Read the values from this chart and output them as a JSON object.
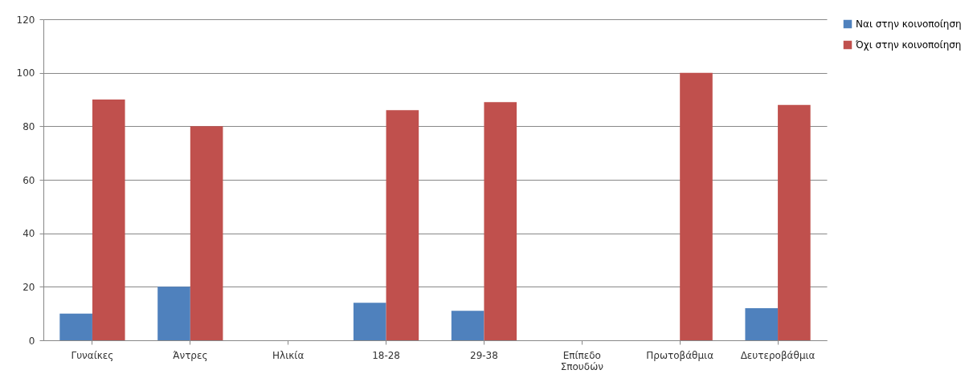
{
  "chart_data": {
    "type": "bar",
    "categories": [
      "Γυναίκες",
      "Άντρες",
      "Ηλικία",
      "18-28",
      "29-38",
      "Επίπεδο Σπουδών",
      "Πρωτοβάθμια",
      "Δευτεροβάθμια"
    ],
    "series": [
      {
        "name": "Ναι στην κοινοποίηση",
        "color": "#4f81bd",
        "values": [
          10,
          20,
          null,
          14,
          11,
          null,
          null,
          12
        ]
      },
      {
        "name": "Όχι στην κοινοποίηση",
        "color": "#c0504d",
        "values": [
          90,
          80,
          null,
          86,
          89,
          null,
          100,
          88
        ]
      }
    ],
    "ylim": [
      0,
      120
    ],
    "yticks": [
      0,
      20,
      40,
      60,
      80,
      100,
      120
    ],
    "grid": "y",
    "legend": "right"
  }
}
